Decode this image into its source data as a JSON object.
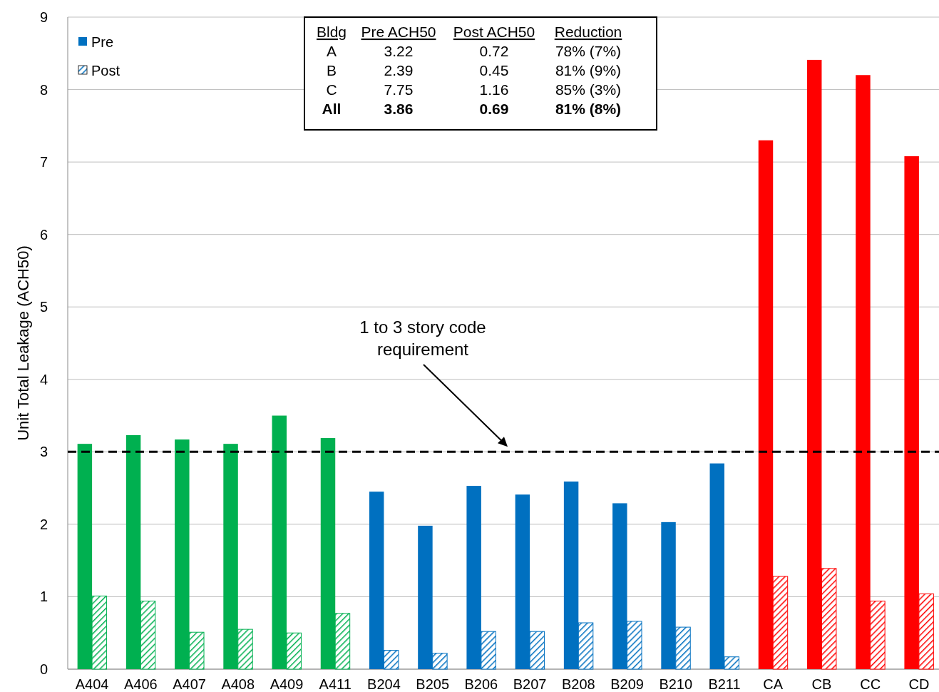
{
  "chart_data": {
    "type": "bar",
    "ylabel": "Unit Total Leakage (ACH50)",
    "categories": [
      "A404",
      "A406",
      "A407",
      "A408",
      "A409",
      "A411",
      "B204",
      "B205",
      "B206",
      "B207",
      "B208",
      "B209",
      "B210",
      "B211",
      "CA",
      "CB",
      "CC",
      "CD"
    ],
    "series": [
      {
        "name": "Pre",
        "color": "#0070c0",
        "colors": [
          "#00b050",
          "#00b050",
          "#00b050",
          "#00b050",
          "#00b050",
          "#00b050",
          "#0070c0",
          "#0070c0",
          "#0070c0",
          "#0070c0",
          "#0070c0",
          "#0070c0",
          "#0070c0",
          "#0070c0",
          "#ff0000",
          "#ff0000",
          "#ff0000",
          "#ff0000"
        ],
        "values": [
          3.11,
          3.23,
          3.17,
          3.11,
          3.5,
          3.19,
          2.45,
          1.98,
          2.53,
          2.41,
          2.59,
          2.29,
          2.03,
          2.84,
          7.3,
          8.41,
          8.2,
          7.08
        ]
      },
      {
        "name": "Post",
        "color": "#0070c0",
        "colors": [
          "#00b050",
          "#00b050",
          "#00b050",
          "#00b050",
          "#00b050",
          "#00b050",
          "#0070c0",
          "#0070c0",
          "#0070c0",
          "#0070c0",
          "#0070c0",
          "#0070c0",
          "#0070c0",
          "#0070c0",
          "#ff0000",
          "#ff0000",
          "#ff0000",
          "#ff0000"
        ],
        "values": [
          1.01,
          0.94,
          0.51,
          0.55,
          0.5,
          0.77,
          0.26,
          0.22,
          0.52,
          0.52,
          0.64,
          0.66,
          0.58,
          0.17,
          1.28,
          1.39,
          0.94,
          1.04
        ]
      }
    ],
    "ylim": [
      0,
      9
    ],
    "yticks": [
      0,
      1,
      2,
      3,
      4,
      5,
      6,
      7,
      8,
      9
    ],
    "grid": "y",
    "legend": "top left",
    "ref_lines": [
      {
        "axis": "y",
        "value": 3,
        "color": "#000000",
        "line_style": "dashed"
      }
    ],
    "annotations": [
      "Bldg\tPre ACH50\tPost ACH50\tReduction",
      "A\t3.22\t0.72\t78% (7%)",
      "B\t2.39\t0.45\t81% (9%)",
      "C\t7.75\t1.16\t85% (3%)",
      "All\t3.86\t0.69\t81% (8%)",
      "1 to 3 story code\nrequirement"
    ]
  }
}
